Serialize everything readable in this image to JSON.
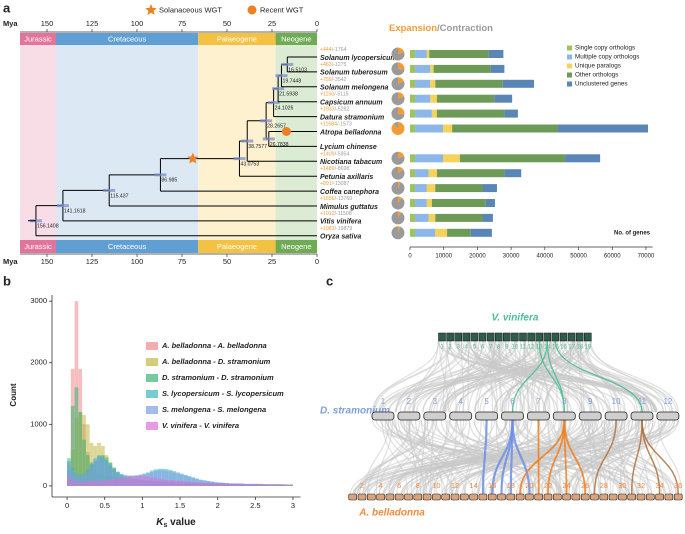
{
  "panel_labels": [
    "a",
    "b",
    "c"
  ],
  "chart_data": [
    {
      "type": "tree",
      "xlabel": "Mya",
      "xlim": [
        165,
        0
      ],
      "xticks": [
        150,
        125,
        100,
        75,
        50,
        25,
        0
      ],
      "periods": [
        {
          "name": "Jurassic",
          "start": 165,
          "end": 145,
          "color": "#e2739b",
          "background": "#f8dde7"
        },
        {
          "name": "Cretaceous",
          "start": 145,
          "end": 66,
          "color": "#5f9fd4",
          "background": "#dce9f5"
        },
        {
          "name": "Palaeogene",
          "start": 66,
          "end": 23,
          "color": "#f4c243",
          "background": "#fdf1d0"
        },
        {
          "name": "Neogene",
          "start": 23,
          "end": 0,
          "color": "#6fab55",
          "background": "#dcecd4"
        }
      ],
      "species": [
        "Solanum lycopersicum",
        "Solanum tuberosum",
        "Solanum melongena",
        "Capsicum annuum",
        "Datura stramonium",
        "Atropa belladonna",
        "Lycium chinense",
        "Nicotiana tabacum",
        "Petunia axillaris",
        "Coffea canephora",
        "Mimulus guttatus",
        "Vitis vinifera",
        "Oryza sativa"
      ],
      "node_ages": [
        156.1408,
        141.1618,
        115.437,
        86.985,
        43.0753,
        38.7577,
        28.2657,
        26.7838,
        24.1026,
        21.5938,
        19.7448,
        16.5103
      ],
      "events": [
        {
          "name": "Solanaceous WGT",
          "age": 69,
          "color": "#f07f1d"
        },
        {
          "name": "Recent WGT",
          "age": 17,
          "color": "#f07f1d"
        }
      ],
      "expansion_title": "Expansion",
      "contraction_title": "/Contraction",
      "expansion_color": "#f39c35",
      "contraction_color": "#9a9a9a",
      "expansion": [
        444,
        463,
        789,
        1150,
        1933,
        11684,
        null,
        1409,
        1489,
        891,
        1656,
        1012,
        1083
      ],
      "expansion_labels": [
        "+444",
        "+463",
        "+789",
        "+1150",
        "+1933",
        "+11684",
        null,
        "+1409",
        "+1489",
        "+891",
        "+1656",
        "+1012",
        "+1083"
      ],
      "contraction": [
        1764,
        1275,
        3542,
        5115,
        5282,
        1573,
        null,
        5954,
        8698,
        13087,
        13760,
        11508,
        19879
      ],
      "contraction_labels": [
        "/-1764",
        "/-1275",
        "/-3542",
        "/-5115",
        "/-5282",
        "/-1573",
        null,
        "/-5954",
        "/-8698",
        "/-13087",
        "/-13760",
        "/-11508",
        "/-19879"
      ]
    },
    {
      "type": "bar",
      "orientation": "horizontal",
      "stacked": true,
      "xlabel": "No. of genes",
      "xlim": [
        0,
        72000
      ],
      "xticks": [
        0,
        10000,
        20000,
        30000,
        40000,
        50000,
        60000,
        70000
      ],
      "legend": "upper right",
      "series": [
        {
          "name": "Single copy orthologs",
          "color": "#9dc35d",
          "values": [
            1500,
            1500,
            1500,
            1500,
            1500,
            1500,
            null,
            1500,
            1500,
            1500,
            1500,
            1500,
            1500
          ]
        },
        {
          "name": "Multiple copy orthologs",
          "color": "#8cb7e8",
          "values": [
            3500,
            4500,
            4500,
            4500,
            5000,
            8300,
            null,
            8300,
            4000,
            3500,
            3500,
            4000,
            6000
          ]
        },
        {
          "name": "Unique paralogs",
          "color": "#f5d25a",
          "values": [
            700,
            1000,
            1500,
            2000,
            1500,
            2700,
            null,
            5000,
            2500,
            2500,
            1500,
            2000,
            3500
          ]
        },
        {
          "name": "Other orthologs",
          "color": "#6e9a58",
          "values": [
            17700,
            17000,
            20000,
            17000,
            20000,
            31400,
            null,
            31200,
            20000,
            14000,
            16000,
            14000,
            7000
          ]
        },
        {
          "name": "Unclustered genes",
          "color": "#5a86b7",
          "values": [
            4300,
            4000,
            9300,
            5300,
            4000,
            26700,
            null,
            10400,
            5000,
            4300,
            2700,
            3100,
            6300
          ]
        }
      ]
    },
    {
      "type": "histogram",
      "ylabel": "Count",
      "xlabel": [
        "K",
        "s",
        " value"
      ],
      "xlim": [
        -0.2,
        3.1
      ],
      "ylim": [
        -180,
        3100
      ],
      "xticks": [
        0,
        0.5,
        1,
        1.5,
        2,
        2.5,
        3
      ],
      "yticks": [
        0,
        1000,
        2000,
        3000
      ],
      "legend": "upper right",
      "bins": [
        0,
        0.05,
        0.1,
        0.15,
        0.2,
        0.25,
        0.3,
        0.35,
        0.4,
        0.45,
        0.5,
        0.55,
        0.6,
        0.65,
        0.7,
        0.75,
        0.8,
        0.85,
        0.9,
        0.95,
        1,
        1.05,
        1.1,
        1.15,
        1.2,
        1.25,
        1.3,
        1.35,
        1.4,
        1.45,
        1.5,
        1.55,
        1.6,
        1.65,
        1.7,
        1.75,
        1.8,
        1.85,
        1.9,
        1.95,
        2,
        2.05,
        2.1,
        2.15,
        2.2,
        2.25,
        2.3,
        2.35,
        2.4,
        2.45,
        2.5,
        2.55,
        2.6,
        2.65,
        2.7,
        2.75,
        2.8,
        2.85,
        2.9,
        2.95,
        3
      ],
      "series": [
        {
          "name": "A. belladonna - A. belladonna",
          "color": "#f08a8a",
          "values": [
            250,
            1900,
            3000,
            1900,
            1000,
            550,
            350,
            250,
            200,
            180,
            160,
            150,
            140,
            130,
            120,
            110,
            100,
            95,
            90,
            85,
            80,
            80,
            75,
            75,
            70,
            70,
            65,
            65,
            60,
            60,
            60,
            55,
            55,
            55,
            50,
            50,
            50,
            50,
            45,
            45,
            45,
            45,
            40,
            40,
            40,
            40,
            40,
            35,
            35,
            35,
            35,
            35,
            30,
            30,
            30,
            30,
            30,
            30,
            25,
            25
          ]
        },
        {
          "name": "A. belladonna - D. stramonium",
          "color": "#c2b846",
          "values": [
            100,
            600,
            1100,
            1200,
            1150,
            1000,
            700,
            650,
            700,
            650,
            500,
            380,
            280,
            200,
            160,
            130,
            110,
            100,
            95,
            90,
            85,
            80,
            80,
            75,
            70,
            70,
            65,
            60,
            60,
            55,
            55,
            55,
            50,
            50,
            50,
            45,
            45,
            45,
            45,
            40,
            40,
            40,
            40,
            35,
            35,
            35,
            35,
            30,
            30,
            30,
            30,
            30,
            25,
            25,
            25,
            25,
            25,
            20,
            20,
            20
          ]
        },
        {
          "name": "D. stramonium - D. stramonium",
          "color": "#3cb371",
          "values": [
            400,
            1300,
            1600,
            1200,
            750,
            500,
            380,
            400,
            480,
            500,
            460,
            380,
            300,
            230,
            180,
            150,
            130,
            120,
            110,
            100,
            95,
            90,
            85,
            80,
            75,
            70,
            65,
            60,
            60,
            55,
            55,
            55,
            50,
            50,
            50,
            45,
            45,
            45,
            45,
            40,
            40,
            40,
            40,
            35,
            35,
            35,
            35,
            30,
            30,
            30,
            30,
            30,
            25,
            25,
            25,
            25,
            25,
            20,
            20,
            20
          ]
        },
        {
          "name": "S. lycopersicum - S. lycopersicum",
          "color": "#3fb3c0",
          "values": [
            450,
            300,
            200,
            180,
            200,
            260,
            350,
            450,
            500,
            480,
            420,
            350,
            280,
            230,
            200,
            180,
            170,
            170,
            175,
            185,
            200,
            220,
            250,
            270,
            280,
            280,
            275,
            260,
            240,
            220,
            200,
            180,
            160,
            140,
            120,
            100,
            90,
            80,
            70,
            60,
            55,
            50,
            45,
            40,
            40,
            35,
            35,
            30,
            30,
            30,
            25,
            25,
            25,
            20,
            20,
            20,
            20,
            20,
            15,
            15
          ]
        },
        {
          "name": "S. melongena - S. melongena",
          "color": "#7f9ee6",
          "values": [
            350,
            250,
            180,
            160,
            180,
            230,
            320,
            420,
            460,
            440,
            380,
            320,
            260,
            210,
            180,
            165,
            160,
            160,
            165,
            175,
            190,
            205,
            225,
            245,
            255,
            255,
            250,
            240,
            220,
            200,
            185,
            170,
            150,
            130,
            115,
            100,
            90,
            80,
            70,
            60,
            55,
            50,
            45,
            40,
            40,
            35,
            35,
            30,
            30,
            30,
            25,
            25,
            25,
            20,
            20,
            20,
            20,
            20,
            15,
            15
          ]
        },
        {
          "name": "V. vinifera - V. vinifera",
          "color": "#e070e0",
          "values": [
            150,
            90,
            70,
            65,
            65,
            70,
            75,
            80,
            85,
            90,
            95,
            100,
            110,
            120,
            130,
            140,
            150,
            155,
            160,
            160,
            155,
            150,
            140,
            130,
            120,
            110,
            100,
            95,
            90,
            85,
            80,
            75,
            70,
            65,
            60,
            55,
            50,
            50,
            45,
            45,
            40,
            40,
            40,
            35,
            35,
            35,
            30,
            30,
            30,
            30,
            25,
            25,
            25,
            25,
            20,
            20,
            20,
            20,
            20,
            15
          ]
        }
      ]
    }
  ],
  "synteny": {
    "genomes": [
      {
        "name": "V. vinifera",
        "color": "#4dbf95",
        "chromosomes": [
          "1",
          "2",
          "3",
          "4",
          "5",
          "6",
          "7",
          "8",
          "9",
          "10",
          "11",
          "12",
          "13",
          "14",
          "15",
          "16",
          "17",
          "18",
          "19"
        ]
      },
      {
        "name": "D. stramonium",
        "color": "#7f9fd8",
        "chromosomes": [
          "1",
          "2",
          "3",
          "4",
          "5",
          "6",
          "7",
          "8",
          "9",
          "10",
          "11",
          "12"
        ]
      },
      {
        "name": "A. belladonna",
        "color": "#f08a3c",
        "chromosomes": [
          "2",
          "4",
          "6",
          "8",
          "10",
          "12",
          "14",
          "16",
          "18",
          "20",
          "22",
          "24",
          "26",
          "28",
          "30",
          "32",
          "34",
          "36"
        ]
      }
    ]
  }
}
